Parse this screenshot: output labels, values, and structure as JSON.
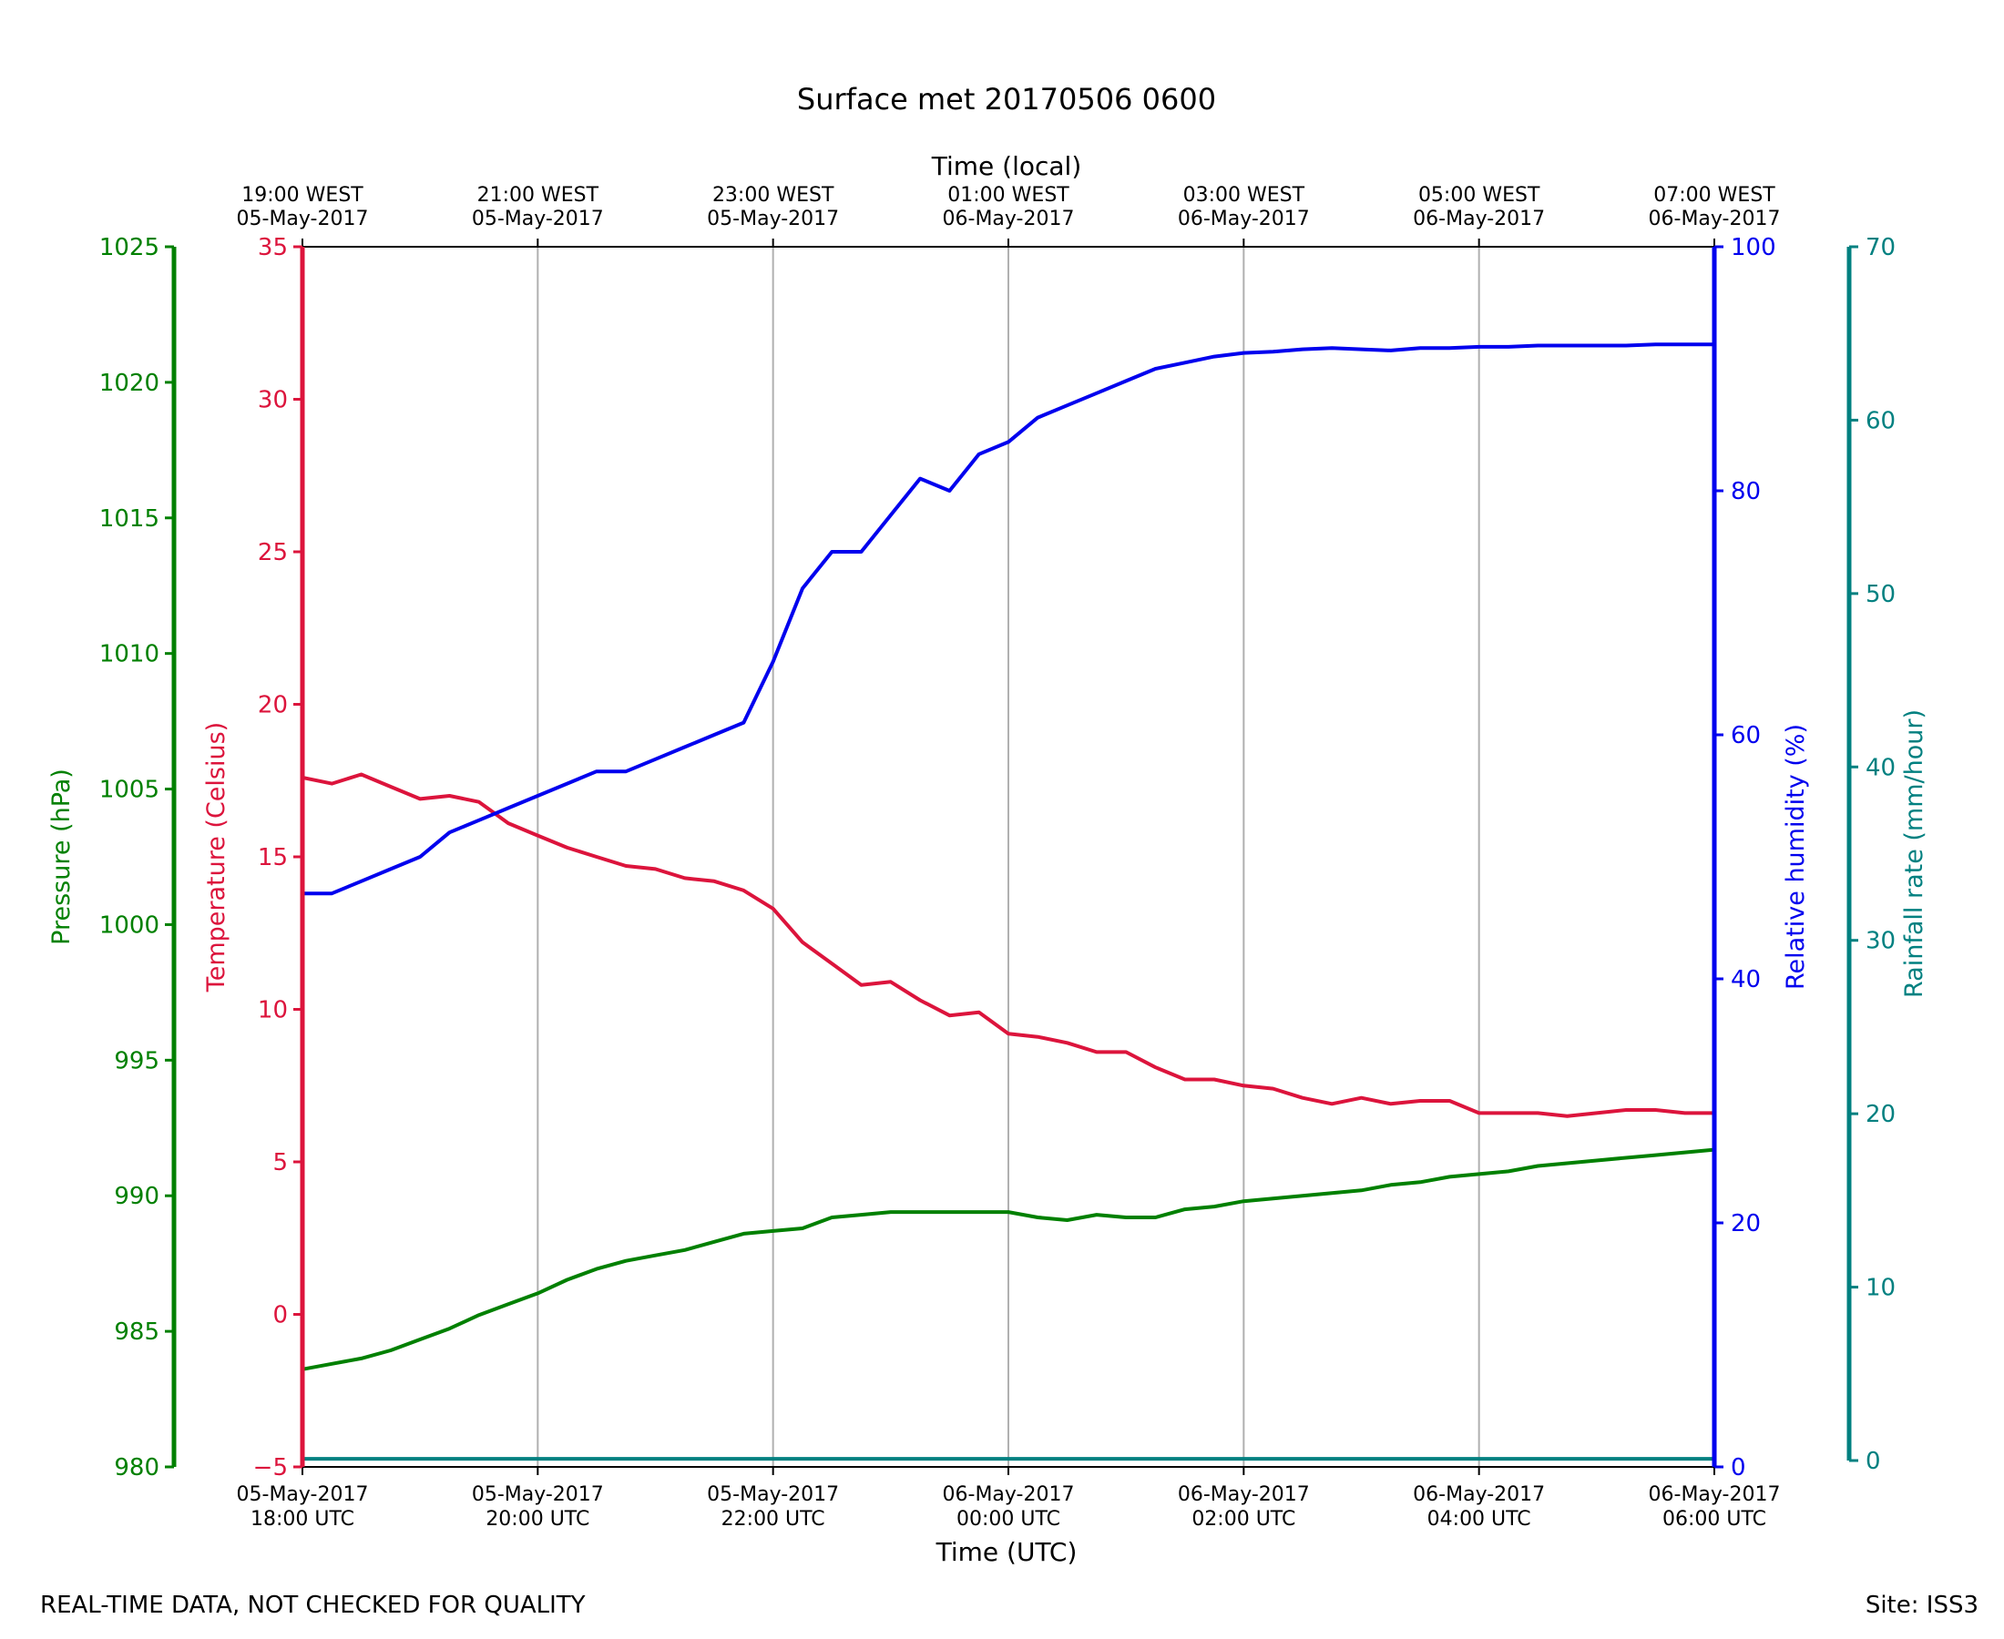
{
  "chart_data": {
    "type": "line",
    "title": "Surface met 20170506 0600",
    "top_axis_label": "Time (local)",
    "bottom_axis_label": "Time (UTC)",
    "x_range_hours_utc": [
      "05-May-2017 18:00 UTC",
      "06-May-2017 06:00 UTC"
    ],
    "top_ticks": [
      {
        "line1": "19:00 WEST",
        "line2": "05-May-2017"
      },
      {
        "line1": "21:00 WEST",
        "line2": "05-May-2017"
      },
      {
        "line1": "23:00 WEST",
        "line2": "05-May-2017"
      },
      {
        "line1": "01:00 WEST",
        "line2": "06-May-2017"
      },
      {
        "line1": "03:00 WEST",
        "line2": "06-May-2017"
      },
      {
        "line1": "05:00 WEST",
        "line2": "06-May-2017"
      },
      {
        "line1": "07:00 WEST",
        "line2": "06-May-2017"
      }
    ],
    "bottom_ticks": [
      {
        "line1": "05-May-2017",
        "line2": "18:00 UTC"
      },
      {
        "line1": "05-May-2017",
        "line2": "20:00 UTC"
      },
      {
        "line1": "05-May-2017",
        "line2": "22:00 UTC"
      },
      {
        "line1": "06-May-2017",
        "line2": "00:00 UTC"
      },
      {
        "line1": "06-May-2017",
        "line2": "02:00 UTC"
      },
      {
        "line1": "06-May-2017",
        "line2": "04:00 UTC"
      },
      {
        "line1": "06-May-2017",
        "line2": "06:00 UTC"
      }
    ],
    "grid": "vertical",
    "axes": {
      "pressure": {
        "label": "Pressure (hPa)",
        "color": "#008000",
        "range": [
          980,
          1025
        ],
        "ticks": [
          980,
          985,
          990,
          995,
          1000,
          1005,
          1010,
          1015,
          1020,
          1025
        ]
      },
      "temperature": {
        "label": "Temperature (Celsius)",
        "color": "#dc143c",
        "range": [
          -5,
          35
        ],
        "ticks": [
          -5,
          0,
          5,
          10,
          15,
          20,
          25,
          30,
          35
        ]
      },
      "humidity": {
        "label": "Relative humidity (%)",
        "color": "#0000ee",
        "range": [
          0,
          100
        ],
        "ticks": [
          0,
          20,
          40,
          60,
          80,
          100
        ]
      },
      "rainfall": {
        "label": "Rainfall rate (mm/hour)",
        "color": "#008080",
        "range": [
          0,
          70
        ],
        "ticks": [
          0,
          10,
          20,
          30,
          40,
          50,
          60,
          70
        ]
      }
    },
    "x_hours": [
      0,
      0.25,
      0.5,
      0.75,
      1.0,
      1.25,
      1.5,
      1.75,
      2.0,
      2.25,
      2.5,
      2.75,
      3.0,
      3.25,
      3.5,
      3.75,
      4.0,
      4.25,
      4.5,
      4.75,
      5.0,
      5.25,
      5.5,
      5.75,
      6.0,
      6.25,
      6.5,
      6.75,
      7.0,
      7.25,
      7.5,
      7.75,
      8.0,
      8.25,
      8.5,
      8.75,
      9.0,
      9.25,
      9.5,
      9.75,
      10.0,
      10.25,
      10.5,
      10.75,
      11.0,
      11.25,
      11.5,
      11.75,
      12.0
    ],
    "series": [
      {
        "name": "Temperature (Celsius)",
        "axis": "temperature",
        "values": [
          17.6,
          17.4,
          17.7,
          17.3,
          16.9,
          17.0,
          16.8,
          16.1,
          15.7,
          15.3,
          15.0,
          14.7,
          14.6,
          14.3,
          14.2,
          13.9,
          13.3,
          12.2,
          11.5,
          10.8,
          10.9,
          10.3,
          9.8,
          9.9,
          9.2,
          9.1,
          8.9,
          8.6,
          8.6,
          8.1,
          7.7,
          7.7,
          7.5,
          7.4,
          7.1,
          6.9,
          7.1,
          6.9,
          7.0,
          7.0,
          6.6,
          6.6,
          6.6,
          6.5,
          6.6,
          6.7,
          6.7,
          6.6,
          6.6
        ]
      },
      {
        "name": "Relative humidity (%)",
        "axis": "humidity",
        "values": [
          47,
          47,
          48,
          49,
          50,
          52,
          53,
          54,
          55,
          56,
          57,
          57,
          58,
          59,
          60,
          61,
          66,
          72,
          75,
          75,
          78,
          81,
          80,
          83,
          84,
          86,
          87,
          88,
          89,
          90,
          90.5,
          91,
          91.3,
          91.4,
          91.6,
          91.7,
          91.6,
          91.5,
          91.7,
          91.7,
          91.8,
          91.8,
          91.9,
          91.9,
          91.9,
          91.9,
          92.0,
          92.0,
          92.0
        ]
      },
      {
        "name": "Pressure (hPa)",
        "axis": "pressure",
        "values": [
          983.6,
          983.8,
          984.0,
          984.3,
          984.7,
          985.1,
          985.6,
          986.0,
          986.4,
          986.9,
          987.3,
          987.6,
          987.8,
          988.0,
          988.3,
          988.6,
          988.7,
          988.8,
          989.2,
          989.3,
          989.4,
          989.4,
          989.4,
          989.4,
          989.4,
          989.2,
          989.1,
          989.3,
          989.2,
          989.2,
          989.5,
          989.6,
          989.8,
          989.9,
          990.0,
          990.1,
          990.2,
          990.4,
          990.5,
          990.7,
          990.8,
          990.9,
          991.1,
          991.2,
          991.3,
          991.4,
          991.5,
          991.6,
          991.7
        ]
      },
      {
        "name": "Rainfall rate (mm/hour)",
        "axis": "rainfall",
        "values": [
          0.1,
          0.1,
          0.1,
          0.1,
          0.1,
          0.1,
          0.1,
          0.1,
          0.1,
          0.1,
          0.1,
          0.1,
          0.1,
          0.1,
          0.1,
          0.1,
          0.1,
          0.1,
          0.1,
          0.1,
          0.1,
          0.1,
          0.1,
          0.1,
          0.1,
          0.1,
          0.1,
          0.1,
          0.1,
          0.1,
          0.1,
          0.1,
          0.1,
          0.1,
          0.1,
          0.1,
          0.1,
          0.1,
          0.1,
          0.1,
          0.1,
          0.1,
          0.1,
          0.1,
          0.1,
          0.1,
          0.1,
          0.1,
          0.1
        ]
      }
    ]
  },
  "footer": {
    "left": "REAL-TIME DATA, NOT CHECKED FOR QUALITY",
    "right": "Site: ISS3"
  }
}
